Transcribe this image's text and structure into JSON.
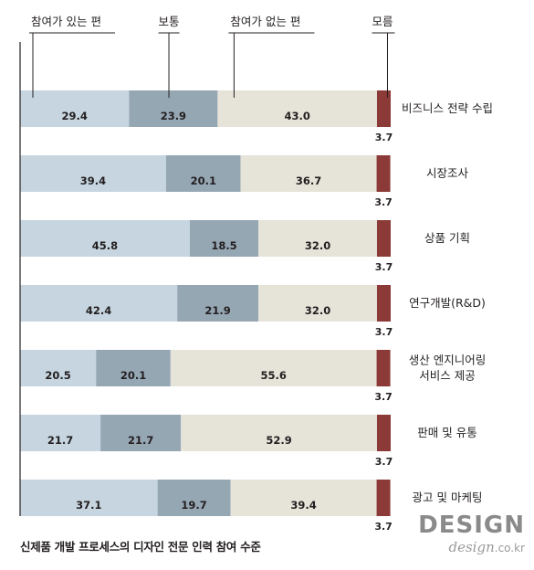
{
  "chart_data": {
    "type": "bar",
    "stacked": true,
    "orientation": "horizontal",
    "legend": [
      "참여가 있는 편",
      "보통",
      "참여가 없는 편",
      "모름"
    ],
    "categories": [
      "비즈니스 전략 수립",
      "시장조사",
      "상품 기획",
      "연구개발(R&D)",
      "생산 엔지니어링\n서비스 제공",
      "판매 및 유통",
      "광고 및 마케팅"
    ],
    "series": [
      {
        "name": "참여가 있는 편",
        "color": "#c6d5df",
        "values": [
          29.4,
          39.4,
          45.8,
          42.4,
          20.5,
          21.7,
          37.1
        ]
      },
      {
        "name": "보통",
        "color": "#96a7b4",
        "values": [
          23.9,
          20.1,
          18.5,
          21.9,
          20.1,
          21.7,
          19.7
        ]
      },
      {
        "name": "참여가 없는 편",
        "color": "#e6e3d9",
        "values": [
          43.0,
          36.7,
          32.0,
          32.0,
          55.6,
          52.9,
          39.4
        ]
      },
      {
        "name": "모름",
        "color": "#8b3a37",
        "values": [
          3.7,
          3.7,
          3.7,
          3.7,
          3.7,
          3.7,
          3.7
        ]
      }
    ],
    "value_labels": [
      [
        "29.4",
        "23.9",
        "43.0",
        "3.7"
      ],
      [
        "39.4",
        "20.1",
        "36.7",
        "3.7"
      ],
      [
        "45.8",
        "18.5",
        "32.0",
        "3.7"
      ],
      [
        "42.4",
        "21.9",
        "32.0",
        "3.7"
      ],
      [
        "20.5",
        "20.1",
        "55.6",
        "3.7"
      ],
      [
        "21.7",
        "21.7",
        "52.9",
        "3.7"
      ],
      [
        "37.1",
        "19.7",
        "39.4",
        "3.7"
      ]
    ],
    "xlim": [
      0,
      100
    ],
    "grid": false,
    "legend_placement": "top"
  },
  "caption": "신제품 개발 프로세스의 디자인 전문 인력 참여 수준",
  "brand": {
    "word": "DESIGN",
    "url": "design",
    "tld": ".co.kr"
  }
}
